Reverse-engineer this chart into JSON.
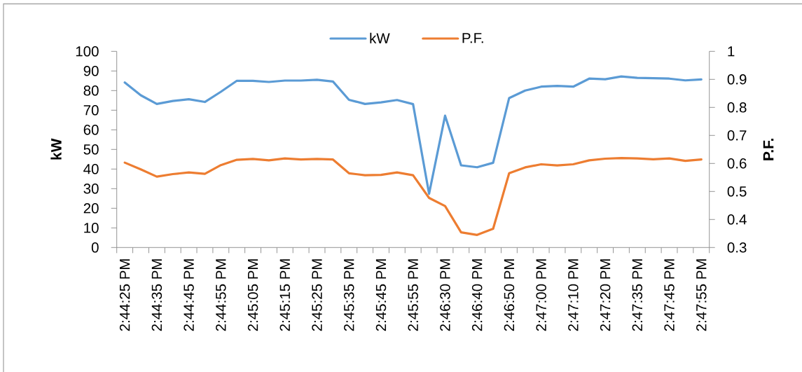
{
  "chart_data": {
    "type": "line",
    "categories": [
      "2:44:25 PM",
      null,
      "2:44:35 PM",
      null,
      "2:44:45 PM",
      null,
      "2:44:55 PM",
      null,
      "2:45:05 PM",
      null,
      "2:45:15 PM",
      null,
      "2:45:25 PM",
      null,
      "2:45:35 PM",
      null,
      "2:45:45 PM",
      null,
      "2:45:55 PM",
      null,
      "2:46:30 PM",
      null,
      "2:46:40 PM",
      null,
      "2:46:50 PM",
      null,
      "2:47:00 PM",
      null,
      "2:47:10 PM",
      null,
      "2:47:20 PM",
      null,
      "2:47:35 PM",
      null,
      "2:47:45 PM",
      null,
      "2:47:55 PM"
    ],
    "series": [
      {
        "name": "kW",
        "color": "#5b9bd5",
        "values": [
          84.1,
          77.6,
          73.2,
          74.7,
          75.6,
          74.2,
          79.4,
          85.0,
          85.0,
          84.4,
          85.1,
          85.1,
          85.5,
          84.6,
          75.3,
          73.2,
          74.0,
          75.2,
          73.1,
          27.4,
          67.2,
          41.9,
          40.9,
          43.2,
          76.2,
          80.0,
          82.0,
          82.4,
          82.0,
          86.1,
          85.8,
          87.2,
          86.5,
          86.3,
          86.1,
          85.2,
          85.7
        ]
      },
      {
        "name": "P.F.",
        "color": "#ed7d31",
        "axis": "y2",
        "values": [
          0.603,
          0.579,
          0.553,
          0.562,
          0.568,
          0.563,
          0.594,
          0.613,
          0.616,
          0.611,
          0.618,
          0.614,
          0.616,
          0.614,
          0.565,
          0.558,
          0.559,
          0.568,
          0.558,
          0.477,
          0.448,
          0.354,
          0.345,
          0.367,
          0.565,
          0.586,
          0.597,
          0.593,
          0.597,
          0.611,
          0.617,
          0.619,
          0.618,
          0.615,
          0.618,
          0.609,
          0.614
        ]
      }
    ],
    "ylabel": "kW",
    "y2label": "P.F.",
    "ylim": [
      0,
      100
    ],
    "yticks": [
      0,
      10,
      20,
      30,
      40,
      50,
      60,
      70,
      80,
      90,
      100
    ],
    "y2lim": [
      0.3,
      1
    ],
    "y2ticks": [
      0.3,
      0.4,
      0.5,
      0.6,
      0.7,
      0.8,
      0.9,
      1
    ],
    "legend": "top",
    "marker": "none",
    "line_style": "solid"
  }
}
